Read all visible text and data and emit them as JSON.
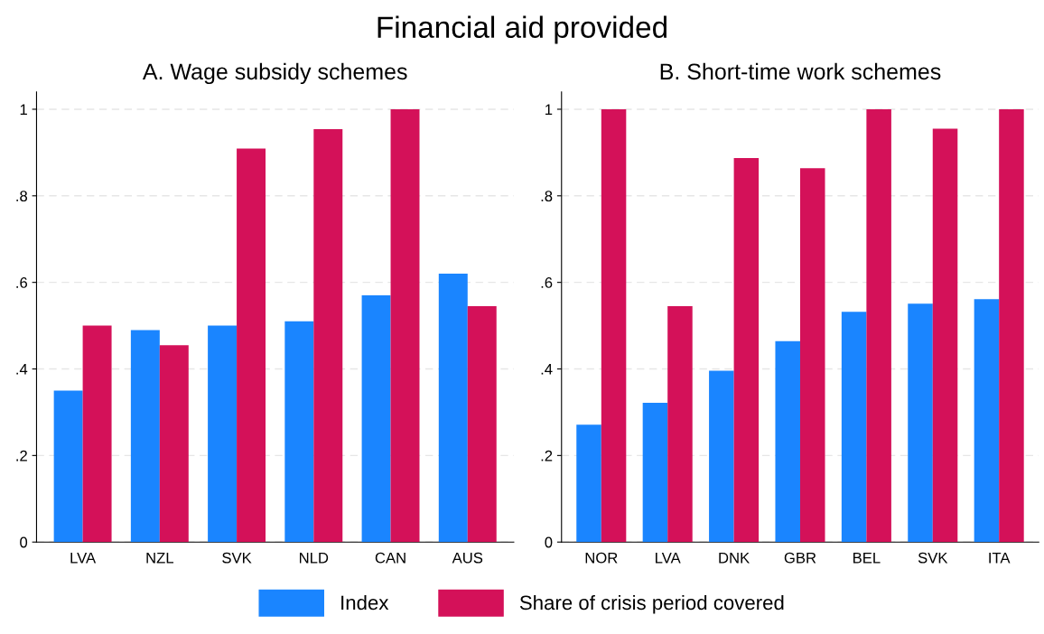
{
  "chart_data": [
    {
      "type": "bar",
      "title": "A. Wage subsidy schemes",
      "categories": [
        "LVA",
        "NZL",
        "SVK",
        "NLD",
        "CAN",
        "AUS"
      ],
      "series": [
        {
          "name": "Index",
          "color": "#1a85ff",
          "values": [
            0.35,
            0.49,
            0.5,
            0.51,
            0.57,
            0.62
          ]
        },
        {
          "name": "Share of crisis period covered",
          "color": "#d41159",
          "values": [
            0.5,
            0.455,
            0.909,
            0.954,
            1,
            0.545
          ]
        }
      ],
      "ylim": [
        0,
        1.04
      ],
      "yticks": [
        0,
        {
          "value": 0.2,
          "label": ".2"
        },
        {
          "value": 0.4,
          "label": ".4"
        },
        {
          "value": 0.6,
          "label": ".6"
        },
        {
          "value": 0.8,
          "label": ".8"
        },
        1
      ],
      "grid": "y",
      "legend": "bottom",
      "annotations": [
        "Financial aid provided"
      ]
    },
    {
      "type": "bar",
      "title": "B. Short-time work schemes",
      "categories": [
        "NOR",
        "LVA",
        "DNK",
        "GBR",
        "BEL",
        "SVK",
        "ITA"
      ],
      "series": [
        {
          "name": "Index",
          "color": "#1a85ff",
          "values": [
            0.271,
            0.322,
            0.396,
            0.464,
            0.532,
            0.551,
            0.561
          ]
        },
        {
          "name": "Share of crisis period covered",
          "color": "#d41159",
          "values": [
            1,
            0.545,
            0.887,
            0.864,
            1,
            0.955,
            1
          ]
        }
      ],
      "ylim": [
        0,
        1.04
      ],
      "yticks": [
        0,
        {
          "value": 0.2,
          "label": ".2"
        },
        {
          "value": 0.4,
          "label": ".4"
        },
        {
          "value": 0.6,
          "label": ".6"
        },
        {
          "value": 0.8,
          "label": ".8"
        },
        1
      ],
      "grid": "y",
      "legend": "bottom"
    }
  ]
}
